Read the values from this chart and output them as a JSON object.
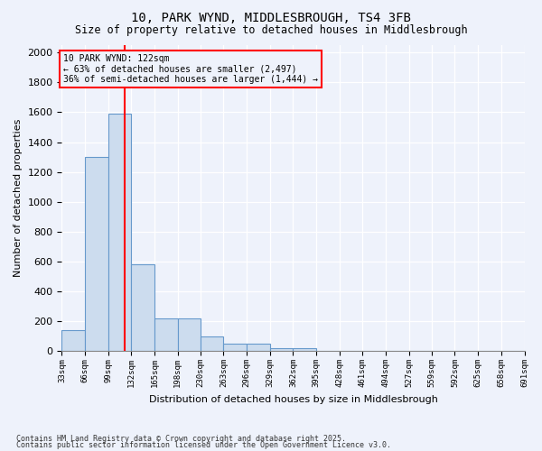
{
  "title_line1": "10, PARK WYND, MIDDLESBROUGH, TS4 3FB",
  "title_line2": "Size of property relative to detached houses in Middlesbrough",
  "xlabel": "Distribution of detached houses by size in Middlesbrough",
  "ylabel": "Number of detached properties",
  "bar_color": "#ccdcee",
  "bar_edge_color": "#6699cc",
  "vline_x": 122,
  "vline_color": "red",
  "annotation_title": "10 PARK WYND: 122sqm",
  "annotation_line1": "← 63% of detached houses are smaller (2,497)",
  "annotation_line2": "36% of semi-detached houses are larger (1,444) →",
  "annotation_box_color": "red",
  "bins": [
    33,
    66,
    99,
    132,
    165,
    198,
    230,
    263,
    296,
    329,
    362,
    395,
    428,
    461,
    494,
    527,
    559,
    592,
    625,
    658,
    691
  ],
  "counts": [
    140,
    1300,
    1590,
    580,
    220,
    220,
    100,
    50,
    50,
    20,
    20,
    0,
    0,
    0,
    0,
    0,
    0,
    0,
    0,
    0
  ],
  "ylim": [
    0,
    2050
  ],
  "yticks": [
    0,
    200,
    400,
    600,
    800,
    1000,
    1200,
    1400,
    1600,
    1800,
    2000
  ],
  "bg_color": "#eef2fb",
  "footnote1": "Contains HM Land Registry data © Crown copyright and database right 2025.",
  "footnote2": "Contains public sector information licensed under the Open Government Licence v3.0."
}
